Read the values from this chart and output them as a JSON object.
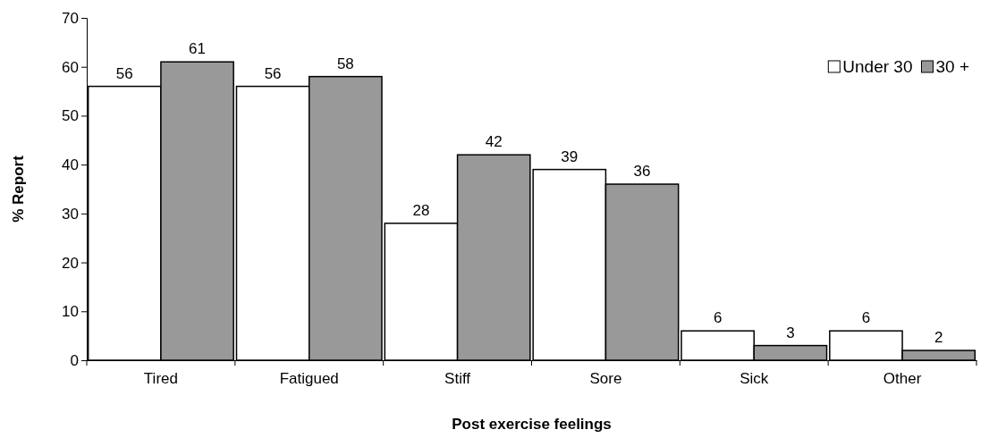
{
  "chart_data": {
    "type": "bar",
    "xlabel": "Post exercise feelings",
    "ylabel": "% Report",
    "categories": [
      "Tired",
      "Fatigued",
      "Stiff",
      "Sore",
      "Sick",
      "Other"
    ],
    "series": [
      {
        "name": "Under 30",
        "color": "#ffffff",
        "values": [
          56,
          56,
          28,
          39,
          6,
          6
        ]
      },
      {
        "name": "30 +",
        "color": "#999999",
        "values": [
          61,
          58,
          42,
          36,
          3,
          2
        ]
      }
    ],
    "ylim": [
      0,
      70
    ],
    "yticks": [
      0,
      10,
      20,
      30,
      40,
      50,
      60,
      70
    ],
    "grid": false,
    "legend": "top right",
    "data_labels": true
  }
}
